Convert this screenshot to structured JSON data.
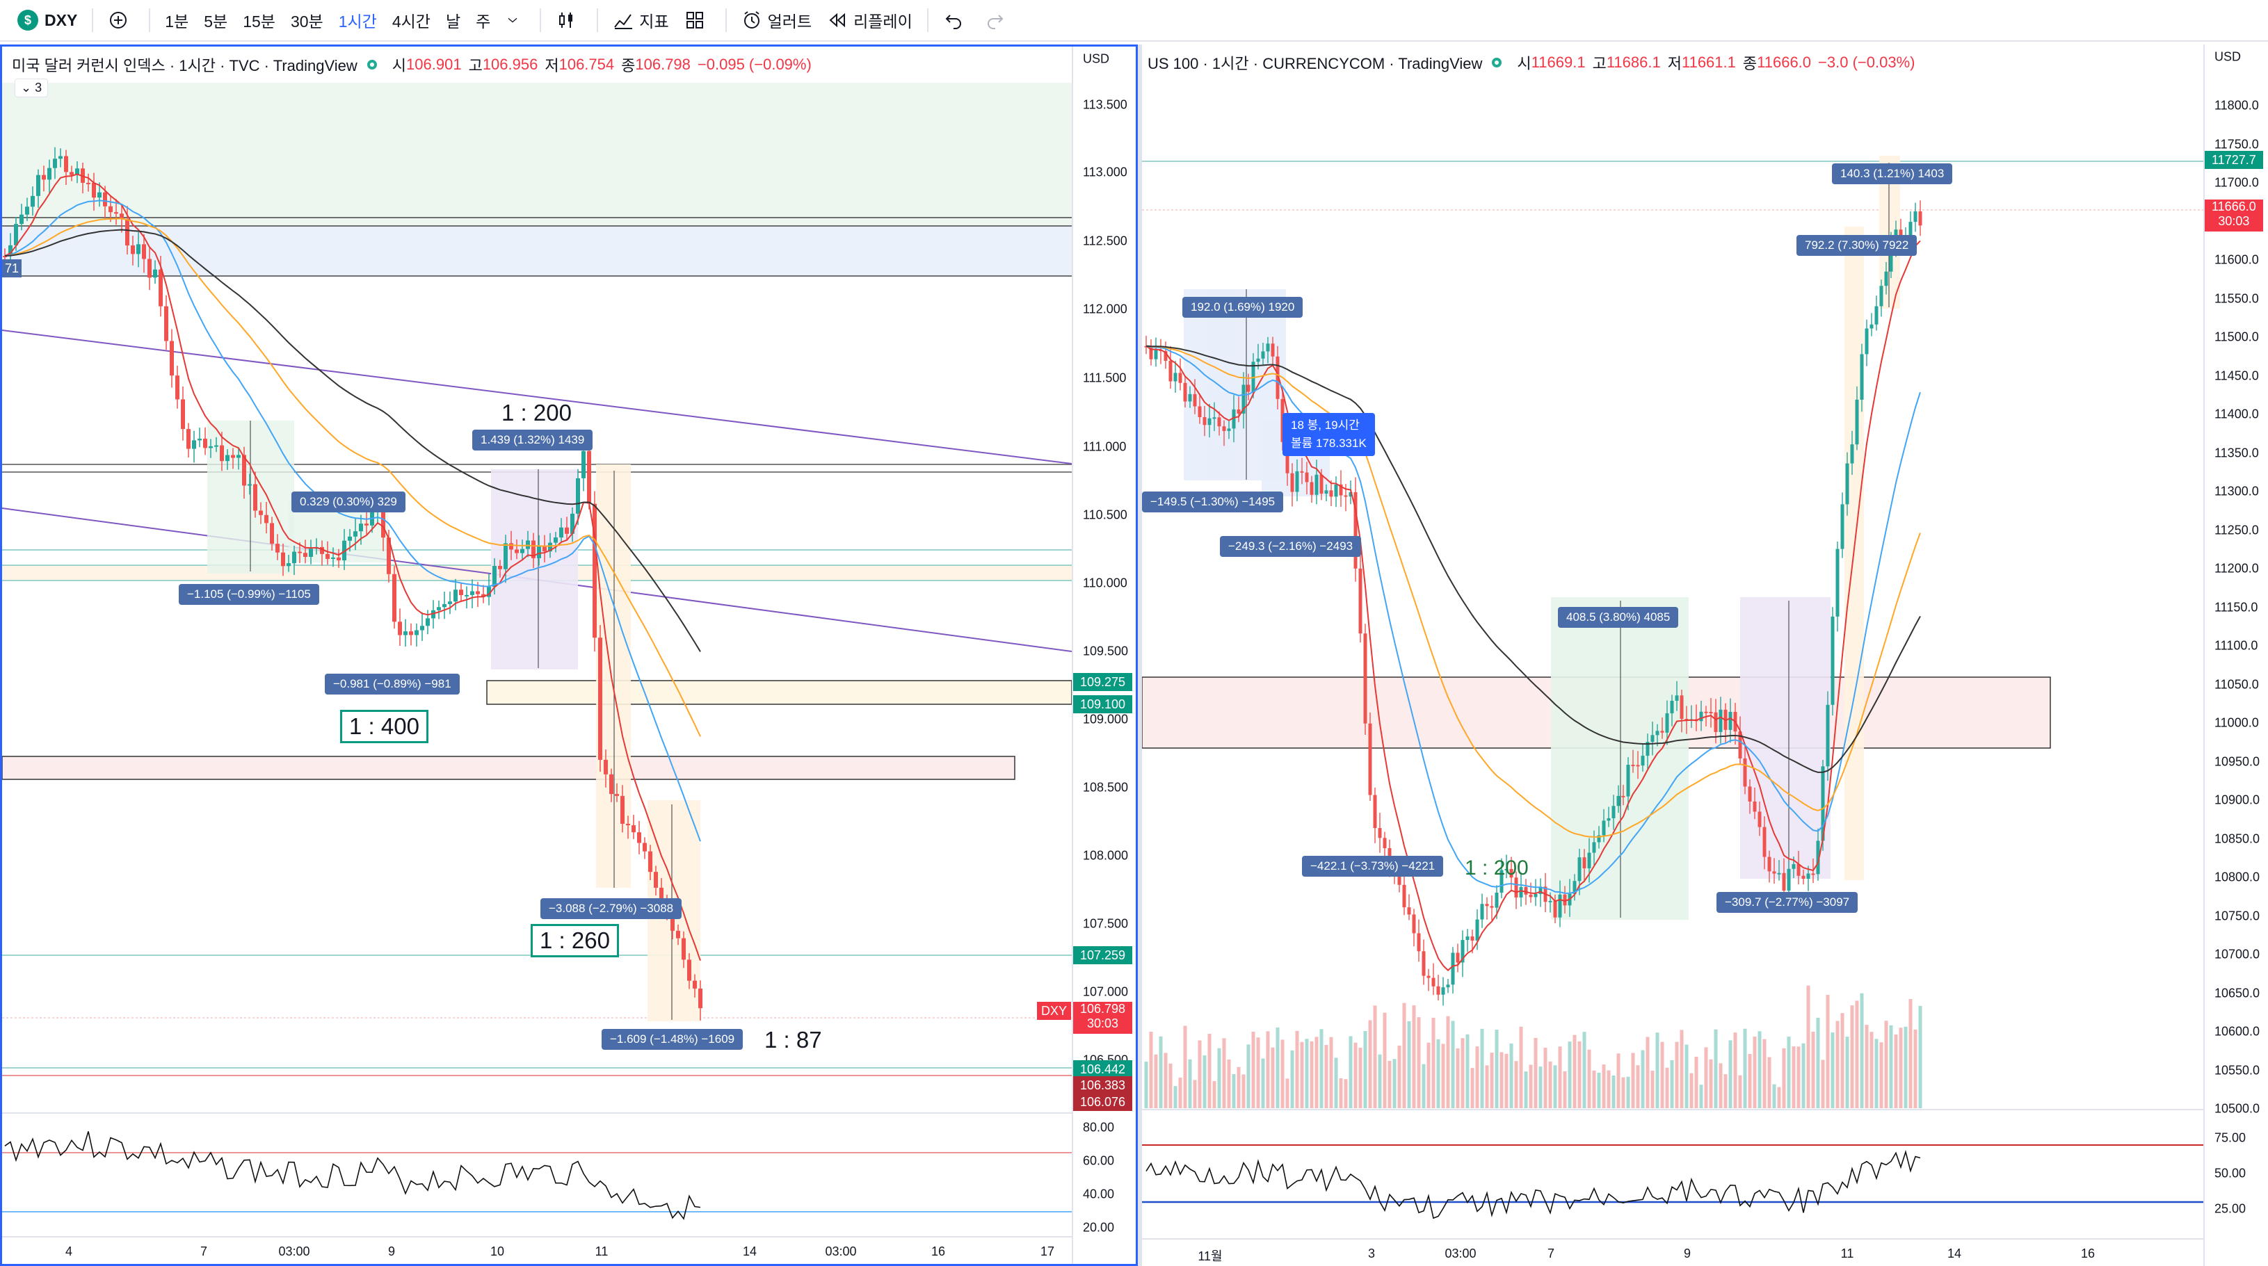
{
  "toolbar": {
    "symbol": "DXY",
    "intervals": [
      "1분",
      "5분",
      "15분",
      "30분",
      "1시간",
      "4시간",
      "날",
      "주"
    ],
    "active_interval": "1시간",
    "indicators_label": "지표",
    "alert_label": "얼러트",
    "replay_label": "리플레이"
  },
  "left": {
    "title": "미국 달러 커런시 인덱스 · 1시간 · TVC · TradingView",
    "ohlc": {
      "o_label": "시",
      "o": "106.901",
      "h_label": "고",
      "h": "106.956",
      "l_label": "저",
      "l": "106.754",
      "c_label": "종",
      "c": "106.798",
      "chg": "−0.095 (−0.09%)"
    },
    "badge": "3",
    "currency": "USD",
    "price_ticks": [
      "113.500",
      "113.000",
      "112.500",
      "112.000",
      "111.500",
      "111.000",
      "110.500",
      "110.000",
      "109.500",
      "109.000",
      "108.500",
      "108.000",
      "107.500",
      "107.000",
      "106.500"
    ],
    "price_labels": [
      {
        "text": "109.275",
        "color": "#089981"
      },
      {
        "text": "109.100",
        "color": "#089981"
      },
      {
        "text": "107.259",
        "color": "#089981"
      },
      {
        "text": "106.798",
        "color": "#f23645",
        "sub": "30:03",
        "tag": "DXY"
      },
      {
        "text": "106.442",
        "color": "#089981"
      },
      {
        "text": "106.383",
        "color": "#b22833"
      },
      {
        "text": "106.076",
        "color": "#b22833"
      }
    ],
    "left_edge_label": "71",
    "rsi_ticks": [
      "80.00",
      "60.00",
      "40.00",
      "20.00"
    ],
    "time_ticks": [
      "4",
      "7",
      "03:00",
      "9",
      "10",
      "11",
      "14",
      "03:00",
      "16",
      "17"
    ],
    "measures": [
      {
        "text": "0.329 (0.30%) 329"
      },
      {
        "text": "−1.105 (−0.99%) −1105"
      },
      {
        "text": "1.439 (1.32%) 1439"
      },
      {
        "text": "−0.981 (−0.89%) −981"
      },
      {
        "text": "−3.088 (−2.79%) −3088"
      },
      {
        "text": "−1.609 (−1.48%) −1609"
      }
    ],
    "ratios": [
      "1 : 200",
      "1 : 400",
      "1 : 260",
      "1 : 87"
    ]
  },
  "right": {
    "title": "US 100 · 1시간 · CURRENCYCOM · TradingView",
    "ohlc": {
      "o_label": "시",
      "o": "11669.1",
      "h_label": "고",
      "h": "11686.1",
      "l_label": "저",
      "l": "11661.1",
      "c_label": "종",
      "c": "11666.0",
      "chg": "−3.0 (−0.03%)"
    },
    "currency": "USD",
    "price_ticks": [
      "11800.0",
      "11750.0",
      "11700.0",
      "11650.0",
      "11600.0",
      "11550.0",
      "11500.0",
      "11450.0",
      "11400.0",
      "11350.0",
      "11300.0",
      "11250.0",
      "11200.0",
      "11150.0",
      "11100.0",
      "11050.0",
      "11000.0",
      "10950.0",
      "10900.0",
      "10850.0",
      "10800.0",
      "10750.0",
      "10700.0",
      "10650.0",
      "10600.0",
      "10550.0",
      "10500.0"
    ],
    "price_labels": [
      {
        "text": "11727.7",
        "color": "#089981"
      },
      {
        "text": "11666.0",
        "color": "#f23645",
        "sub": "30:03"
      }
    ],
    "rsi_ticks": [
      "75.00",
      "50.00",
      "25.00"
    ],
    "time_ticks": [
      "11월",
      "3",
      "03:00",
      "7",
      "9",
      "11",
      "14",
      "16"
    ],
    "measures": [
      {
        "text": "140.3 (1.21%) 1403"
      },
      {
        "text": "792.2 (7.30%) 7922"
      },
      {
        "text": "192.0 (1.69%) 1920"
      },
      {
        "text": "−149.5 (−1.30%) −1495"
      },
      {
        "text": "−249.3 (−2.16%) −2493"
      },
      {
        "text": "408.5 (3.80%) 4085"
      },
      {
        "text": "−422.1 (−3.73%) −4221"
      },
      {
        "text": "−309.7 (−2.77%) −3097"
      }
    ],
    "tooltip": {
      "line1": "18 봉, 19시간",
      "line2": "볼륨 178.331K"
    },
    "ratios": [
      "1 : 200"
    ]
  }
}
